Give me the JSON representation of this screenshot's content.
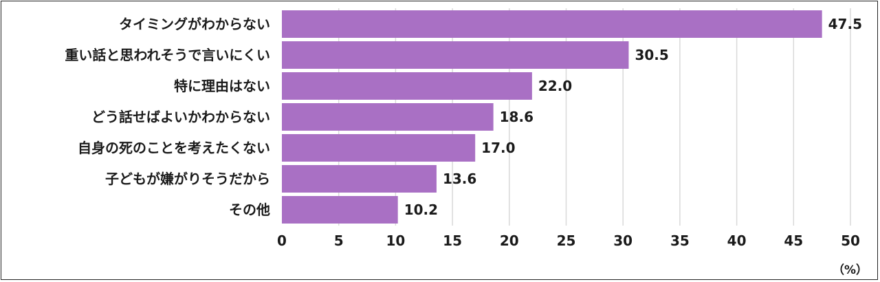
{
  "chart_data": {
    "type": "bar",
    "orientation": "horizontal",
    "categories": [
      "タイミングがわからない",
      "重い話と思われそうで言いにくい",
      "特に理由はない",
      "どう話せばよいかわからない",
      "自身の死のことを考えたくない",
      "子どもが嫌がりそうだから",
      "その他"
    ],
    "values": [
      47.5,
      30.5,
      22.0,
      18.6,
      17.0,
      13.6,
      10.2
    ],
    "value_labels": [
      "47.5",
      "30.5",
      "22.0",
      "18.6",
      "17.0",
      "13.6",
      "10.2"
    ],
    "xlim": [
      0,
      50
    ],
    "x_ticks": [
      "0",
      "5",
      "10",
      "15",
      "20",
      "25",
      "30",
      "35",
      "40",
      "45",
      "50"
    ],
    "unit_label": "（%）",
    "grid": true,
    "bar_color": "#a970c4",
    "grid_color": "#d9d9d9"
  }
}
